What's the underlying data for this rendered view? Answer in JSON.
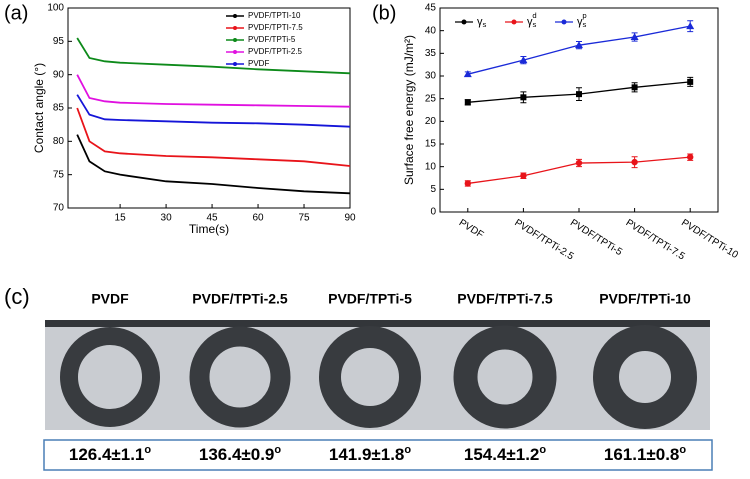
{
  "chart_data": [
    {
      "type": "line",
      "panel": "(a)",
      "xlabel": "Time(s)",
      "ylabel": "Contact angle (°)",
      "x": [
        1,
        5,
        10,
        15,
        30,
        45,
        60,
        75,
        90
      ],
      "xlim": [
        -2,
        90
      ],
      "xticks": [
        15,
        30,
        45,
        60,
        75,
        90
      ],
      "ylim": [
        70,
        100
      ],
      "yticks": [
        70,
        75,
        80,
        85,
        90,
        95,
        100
      ],
      "series": [
        {
          "name": "PVDF/TPTI-10",
          "color": "#000000",
          "values": [
            81,
            77,
            75.5,
            75,
            74,
            73.6,
            73,
            72.5,
            72.2
          ]
        },
        {
          "name": "PVDF/TPTI-7.5",
          "color": "#e8141a",
          "values": [
            85,
            80,
            78.5,
            78.2,
            77.8,
            77.6,
            77.3,
            77,
            76.3
          ]
        },
        {
          "name": "PVDF/TPTi-5",
          "color": "#0d8a1a",
          "values": [
            95.5,
            92.5,
            92,
            91.8,
            91.5,
            91.2,
            90.8,
            90.5,
            90.2
          ]
        },
        {
          "name": "PVDF/TPTi-2.5",
          "color": "#e010e0",
          "values": [
            90,
            86.5,
            86,
            85.8,
            85.6,
            85.5,
            85.4,
            85.3,
            85.2
          ]
        },
        {
          "name": "PVDF",
          "color": "#1515d8",
          "values": [
            87,
            84,
            83.3,
            83.2,
            83,
            82.8,
            82.7,
            82.5,
            82.2
          ]
        }
      ]
    },
    {
      "type": "line",
      "panel": "(b)",
      "ylabel": "Surface free energy (mJ/m²)",
      "categories": [
        "PVDF",
        "PVDF/TPTi-2.5",
        "PVDF/TPTi-5",
        "PVDF/TPTi-7.5",
        "PVDF/TPTi-10"
      ],
      "ylim": [
        0,
        45
      ],
      "yticks": [
        0,
        5,
        10,
        15,
        20,
        25,
        30,
        35,
        40,
        45
      ],
      "series": [
        {
          "name": "γ",
          "sub": "s",
          "color": "#000000",
          "values": [
            24.2,
            25.3,
            26,
            27.5,
            28.7
          ],
          "errors": [
            0.6,
            1.2,
            1.4,
            1,
            1
          ]
        },
        {
          "name": "γ",
          "sub": "s",
          "sup": "d",
          "color": "#e8141a",
          "values": [
            6.3,
            8,
            10.8,
            11,
            12.1
          ],
          "errors": [
            0.6,
            0.6,
            0.8,
            1.2,
            0.7
          ]
        },
        {
          "name": "γ",
          "sub": "s",
          "sup": "p",
          "color": "#1a2ad8",
          "values": [
            30.4,
            33.5,
            36.8,
            38.6,
            41
          ],
          "errors": [
            0.5,
            0.8,
            0.8,
            0.9,
            1.2
          ]
        }
      ]
    }
  ],
  "panel_c": {
    "label": "(c)",
    "titles": [
      "PVDF",
      "PVDF/TPTi-2.5",
      "PVDF/TPTi-5",
      "PVDF/TPTi-7.5",
      "PVDF/TPTi-10"
    ],
    "angles": [
      {
        "text": "126.4±1.1",
        "sup": "o"
      },
      {
        "text": "136.4±0.9",
        "sup": "o"
      },
      {
        "text": "141.9±1.8",
        "sup": "o"
      },
      {
        "text": "154.4±1.2",
        "sup": "o"
      },
      {
        "text": "161.1±0.8",
        "sup": "o"
      }
    ]
  }
}
